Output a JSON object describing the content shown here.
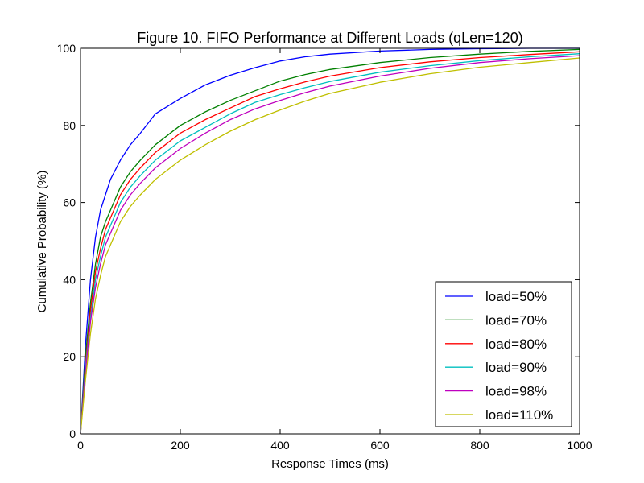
{
  "chart_data": {
    "type": "line",
    "title": "Figure 10. FIFO Performance at Different Loads (qLen=120)",
    "xlabel": "Response Times (ms)",
    "ylabel": "Cumulative Probability (%)",
    "xlim": [
      0,
      1000
    ],
    "ylim": [
      0,
      100
    ],
    "xticks": [
      0,
      200,
      400,
      600,
      800,
      1000
    ],
    "yticks": [
      0,
      20,
      40,
      60,
      80,
      100
    ],
    "grid": false,
    "legend_position": "lower-right",
    "x": [
      0,
      10,
      20,
      30,
      40,
      50,
      60,
      80,
      100,
      120,
      150,
      200,
      250,
      300,
      350,
      400,
      450,
      500,
      600,
      700,
      800,
      900,
      1000
    ],
    "series": [
      {
        "name": "load=50%",
        "color": "#0000ff",
        "values": [
          0,
          23,
          40,
          51,
          58,
          62,
          66,
          71,
          75,
          78,
          83,
          87,
          90.5,
          93,
          95,
          96.7,
          97.8,
          98.5,
          99.3,
          99.7,
          99.9,
          100,
          100
        ]
      },
      {
        "name": "load=70%",
        "color": "#008000",
        "values": [
          0,
          20,
          34,
          44,
          51,
          55,
          58,
          64,
          68,
          71,
          75,
          80,
          83.5,
          86.5,
          89,
          91.5,
          93.2,
          94.5,
          96.3,
          97.6,
          98.5,
          99.2,
          99.7
        ]
      },
      {
        "name": "load=80%",
        "color": "#ff0000",
        "values": [
          0,
          18,
          32,
          42,
          48,
          53,
          56,
          62,
          66,
          69,
          73,
          78,
          81.5,
          84.5,
          87.5,
          89.5,
          91.3,
          92.8,
          95,
          96.5,
          97.6,
          98.4,
          99.1
        ]
      },
      {
        "name": "load=90%",
        "color": "#00bfbf",
        "values": [
          0,
          17,
          30,
          40,
          46,
          51,
          54,
          60,
          64,
          67,
          71,
          76,
          79.5,
          83,
          86,
          88,
          89.8,
          91.4,
          93.8,
          95.5,
          96.8,
          97.8,
          98.6
        ]
      },
      {
        "name": "load=98%",
        "color": "#bf00bf",
        "values": [
          0,
          16,
          29,
          38,
          44,
          49,
          52,
          58,
          62,
          65,
          69,
          74,
          78,
          81.5,
          84.3,
          86.5,
          88.5,
          90.2,
          92.8,
          94.8,
          96.3,
          97.3,
          98.1
        ]
      },
      {
        "name": "load=110%",
        "color": "#bfbf00",
        "values": [
          0,
          14,
          26,
          35,
          41,
          46,
          49,
          55,
          59,
          62,
          66,
          71,
          75,
          78.5,
          81.5,
          84,
          86.3,
          88.3,
          91.2,
          93.4,
          95.1,
          96.3,
          97.5
        ]
      }
    ]
  }
}
